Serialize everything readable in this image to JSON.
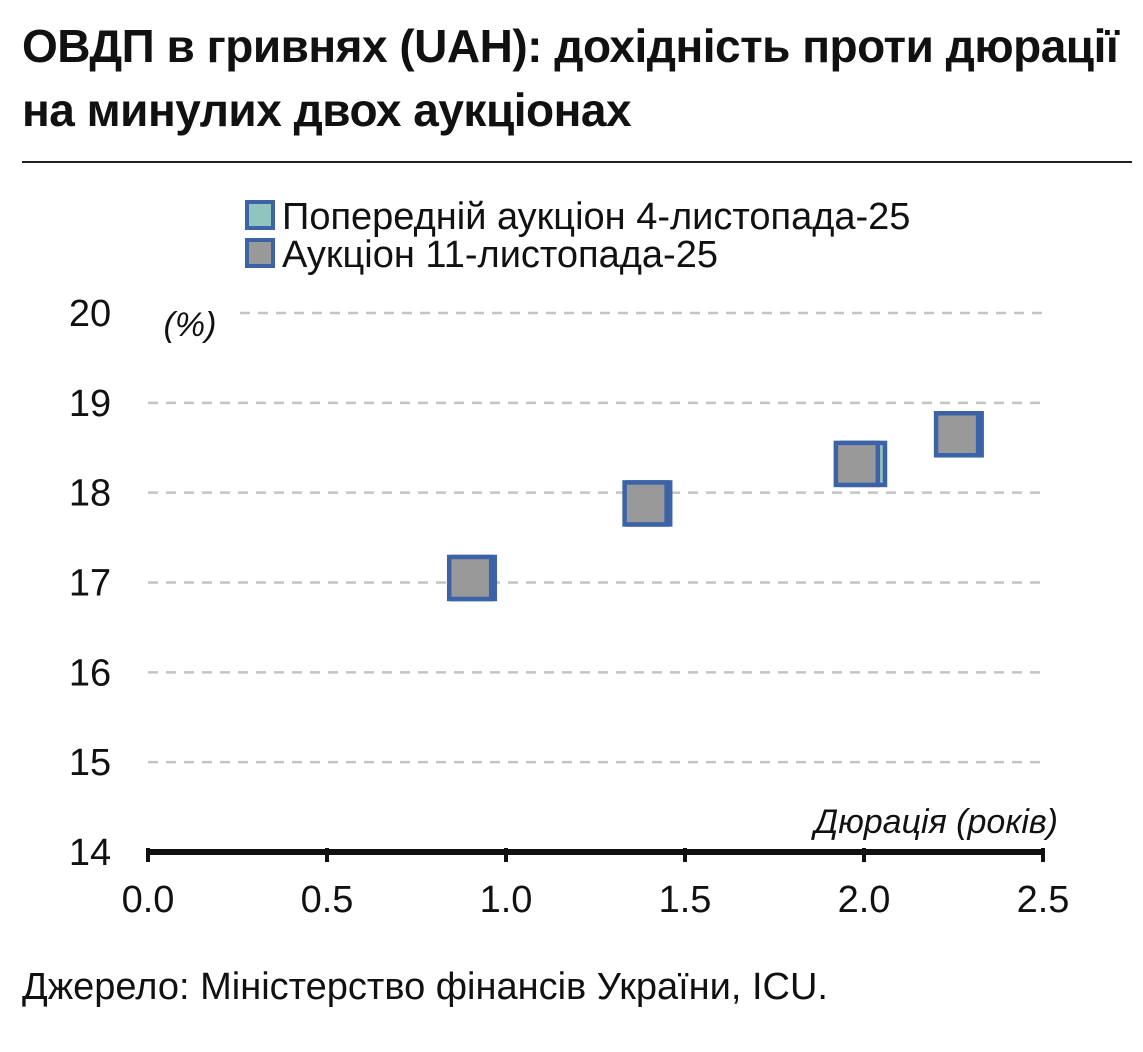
{
  "title": "ОВДП в гривнях (UAH): дохідність проти дюрації на минулих двох аукціонах",
  "source": "Джерело: Міністерство фінансів України, ICU.",
  "colors": {
    "marker_stroke": "#3b63a6",
    "previous_fill": "#8fc4bf",
    "current_fill": "#999999",
    "grid": "#c4c4c4",
    "axis": "#111111"
  },
  "chart_data": {
    "type": "scatter",
    "ylabel": "(%)",
    "xlabel": "Дюрація (років)",
    "xlim": [
      0,
      2.5
    ],
    "ylim": [
      14,
      20
    ],
    "x_ticks": [
      "0.0",
      "0.5",
      "1.0",
      "1.5",
      "2.0",
      "2.5"
    ],
    "y_ticks": [
      "14",
      "15",
      "16",
      "17",
      "18",
      "19",
      "20"
    ],
    "grid": "horizontal dashed",
    "legend_position": "top-center",
    "series": [
      {
        "name": "Попередній аукціон 4-листопада-25",
        "points": [
          {
            "x": 0.91,
            "y": 17.05
          },
          {
            "x": 1.4,
            "y": 17.88
          },
          {
            "x": 2.0,
            "y": 18.32
          },
          {
            "x": 2.27,
            "y": 18.65
          }
        ]
      },
      {
        "name": "Аукціон 11-листопада-25",
        "points": [
          {
            "x": 0.9,
            "y": 17.05
          },
          {
            "x": 1.39,
            "y": 17.88
          },
          {
            "x": 1.98,
            "y": 18.32
          },
          {
            "x": 2.26,
            "y": 18.65
          }
        ]
      }
    ]
  }
}
